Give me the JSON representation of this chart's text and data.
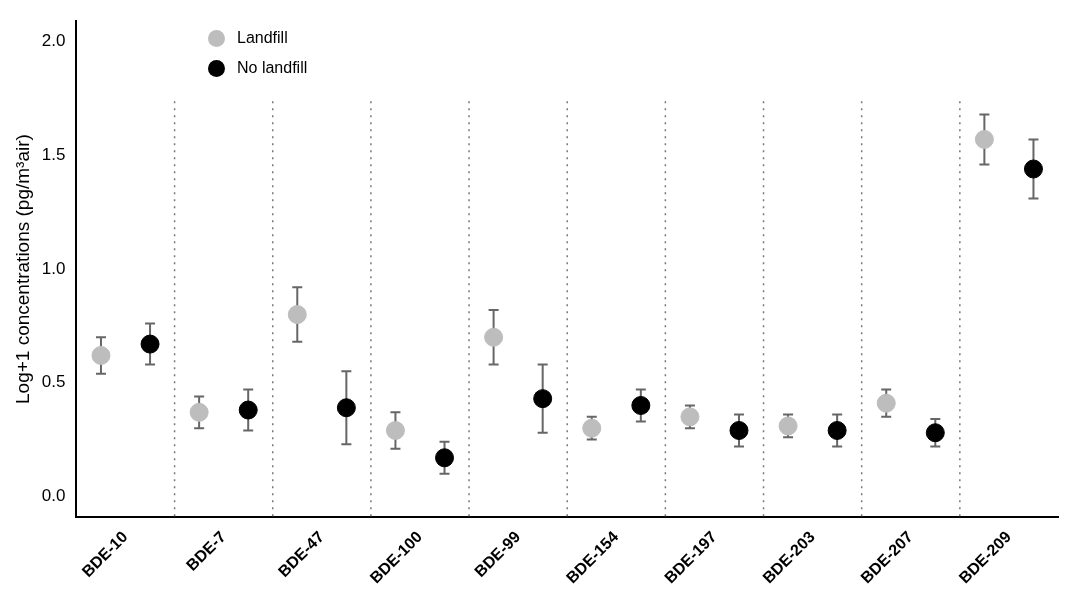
{
  "chart_data": {
    "type": "scatter",
    "ylabel": "Log+1 concentrations (pg/m³air)",
    "categories": [
      "BDE-10",
      "BDE-7",
      "BDE-47",
      "BDE-100",
      "BDE-99",
      "BDE-154",
      "BDE-197",
      "BDE-203",
      "BDE-207",
      "BDE-209"
    ],
    "series": [
      {
        "name": "Landfill",
        "color": "#bdbdbd",
        "values": [
          0.62,
          0.37,
          0.8,
          0.29,
          0.7,
          0.3,
          0.35,
          0.31,
          0.41,
          1.57
        ],
        "errors": [
          [
            0.54,
            0.7
          ],
          [
            0.3,
            0.44
          ],
          [
            0.68,
            0.92
          ],
          [
            0.21,
            0.37
          ],
          [
            0.58,
            0.82
          ],
          [
            0.25,
            0.35
          ],
          [
            0.3,
            0.4
          ],
          [
            0.26,
            0.36
          ],
          [
            0.35,
            0.47
          ],
          [
            1.46,
            1.68
          ]
        ]
      },
      {
        "name": "No landfill",
        "color": "#000000",
        "values": [
          0.67,
          0.38,
          0.39,
          0.17,
          0.43,
          0.4,
          0.29,
          0.29,
          0.28,
          1.44
        ],
        "errors": [
          [
            0.58,
            0.76
          ],
          [
            0.29,
            0.47
          ],
          [
            0.23,
            0.55
          ],
          [
            0.1,
            0.24
          ],
          [
            0.28,
            0.58
          ],
          [
            0.33,
            0.47
          ],
          [
            0.22,
            0.36
          ],
          [
            0.22,
            0.36
          ],
          [
            0.22,
            0.34
          ],
          [
            1.31,
            1.57
          ]
        ]
      }
    ],
    "ylim": [
      -0.09,
      2.09
    ],
    "yticks": [
      {
        "value": 0,
        "label": "0.0"
      },
      {
        "value": 0.5,
        "label": "0.5"
      },
      {
        "value": 1,
        "label": "1.0"
      },
      {
        "value": 1.5,
        "label": "1.5"
      },
      {
        "value": 2,
        "label": "2.0"
      }
    ],
    "grid": "x",
    "legend": "top left",
    "marker": "circle"
  }
}
